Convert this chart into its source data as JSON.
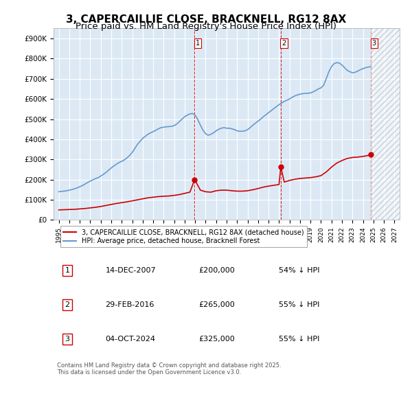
{
  "title": "3, CAPERCAILLIE CLOSE, BRACKNELL, RG12 8AX",
  "subtitle": "Price paid vs. HM Land Registry's House Price Index (HPI)",
  "title_fontsize": 11,
  "subtitle_fontsize": 9.5,
  "bg_color": "#ffffff",
  "plot_bg_color": "#dce9f5",
  "grid_color": "#ffffff",
  "red_color": "#cc0000",
  "blue_color": "#6699cc",
  "dashed_color": "#cc0000",
  "xlim_start": 1994.5,
  "xlim_end": 2027.5,
  "ylim_min": 0,
  "ylim_max": 950000,
  "ytick_values": [
    0,
    100000,
    200000,
    300000,
    400000,
    500000,
    600000,
    700000,
    800000,
    900000
  ],
  "ytick_labels": [
    "£0",
    "£100K",
    "£200K",
    "£300K",
    "£400K",
    "£500K",
    "£600K",
    "£700K",
    "£800K",
    "£900K"
  ],
  "xtick_years": [
    1995,
    1996,
    1997,
    1998,
    1999,
    2000,
    2001,
    2002,
    2003,
    2004,
    2005,
    2006,
    2007,
    2008,
    2009,
    2010,
    2011,
    2012,
    2013,
    2014,
    2015,
    2016,
    2017,
    2018,
    2019,
    2020,
    2021,
    2022,
    2023,
    2024,
    2025,
    2026,
    2027
  ],
  "sale_dates": [
    2007.95,
    2016.16,
    2024.75
  ],
  "sale_prices": [
    200000,
    265000,
    325000
  ],
  "sale_labels": [
    "1",
    "2",
    "3"
  ],
  "vline_dates": [
    2007.95,
    2016.16,
    2024.75
  ],
  "legend_entries": [
    "3, CAPERCAILLIE CLOSE, BRACKNELL, RG12 8AX (detached house)",
    "HPI: Average price, detached house, Bracknell Forest"
  ],
  "table_rows": [
    {
      "num": "1",
      "date": "14-DEC-2007",
      "price": "£200,000",
      "hpi": "54% ↓ HPI"
    },
    {
      "num": "2",
      "date": "29-FEB-2016",
      "price": "£265,000",
      "hpi": "55% ↓ HPI"
    },
    {
      "num": "3",
      "date": "04-OCT-2024",
      "price": "£325,000",
      "hpi": "55% ↓ HPI"
    }
  ],
  "footer": "Contains HM Land Registry data © Crown copyright and database right 2025.\nThis data is licensed under the Open Government Licence v3.0.",
  "hpi_years": [
    1995.0,
    1995.25,
    1995.5,
    1995.75,
    1996.0,
    1996.25,
    1996.5,
    1996.75,
    1997.0,
    1997.25,
    1997.5,
    1997.75,
    1998.0,
    1998.25,
    1998.5,
    1998.75,
    1999.0,
    1999.25,
    1999.5,
    1999.75,
    2000.0,
    2000.25,
    2000.5,
    2000.75,
    2001.0,
    2001.25,
    2001.5,
    2001.75,
    2002.0,
    2002.25,
    2002.5,
    2002.75,
    2003.0,
    2003.25,
    2003.5,
    2003.75,
    2004.0,
    2004.25,
    2004.5,
    2004.75,
    2005.0,
    2005.25,
    2005.5,
    2005.75,
    2006.0,
    2006.25,
    2006.5,
    2006.75,
    2007.0,
    2007.25,
    2007.5,
    2007.75,
    2008.0,
    2008.25,
    2008.5,
    2008.75,
    2009.0,
    2009.25,
    2009.5,
    2009.75,
    2010.0,
    2010.25,
    2010.5,
    2010.75,
    2011.0,
    2011.25,
    2011.5,
    2011.75,
    2012.0,
    2012.25,
    2012.5,
    2012.75,
    2013.0,
    2013.25,
    2013.5,
    2013.75,
    2014.0,
    2014.25,
    2014.5,
    2014.75,
    2015.0,
    2015.25,
    2015.5,
    2015.75,
    2016.0,
    2016.25,
    2016.5,
    2016.75,
    2017.0,
    2017.25,
    2017.5,
    2017.75,
    2018.0,
    2018.25,
    2018.5,
    2018.75,
    2019.0,
    2019.25,
    2019.5,
    2019.75,
    2020.0,
    2020.25,
    2020.5,
    2020.75,
    2021.0,
    2021.25,
    2021.5,
    2021.75,
    2022.0,
    2022.25,
    2022.5,
    2022.75,
    2023.0,
    2023.25,
    2023.5,
    2023.75,
    2024.0,
    2024.25,
    2024.5,
    2024.75
  ],
  "hpi_values": [
    140000,
    142000,
    143000,
    145000,
    148000,
    151000,
    155000,
    159000,
    165000,
    171000,
    178000,
    186000,
    193000,
    199000,
    205000,
    210000,
    218000,
    226000,
    236000,
    247000,
    258000,
    268000,
    277000,
    285000,
    291000,
    298000,
    308000,
    320000,
    335000,
    355000,
    375000,
    390000,
    405000,
    415000,
    425000,
    432000,
    438000,
    445000,
    452000,
    458000,
    460000,
    462000,
    463000,
    464000,
    468000,
    476000,
    488000,
    500000,
    512000,
    520000,
    526000,
    528000,
    520000,
    498000,
    470000,
    445000,
    428000,
    420000,
    425000,
    432000,
    442000,
    450000,
    455000,
    458000,
    455000,
    455000,
    452000,
    448000,
    442000,
    440000,
    440000,
    442000,
    448000,
    458000,
    470000,
    480000,
    490000,
    500000,
    512000,
    522000,
    532000,
    542000,
    552000,
    562000,
    572000,
    580000,
    588000,
    594000,
    600000,
    608000,
    615000,
    620000,
    624000,
    626000,
    628000,
    628000,
    630000,
    635000,
    642000,
    650000,
    655000,
    668000,
    700000,
    735000,
    760000,
    775000,
    780000,
    778000,
    768000,
    755000,
    742000,
    735000,
    730000,
    732000,
    738000,
    745000,
    750000,
    755000,
    758000,
    760000
  ],
  "red_years": [
    1995.0,
    1995.5,
    1996.0,
    1996.5,
    1997.0,
    1997.5,
    1998.0,
    1998.5,
    1999.0,
    1999.5,
    2000.0,
    2000.5,
    2001.0,
    2001.5,
    2002.0,
    2002.5,
    2003.0,
    2003.5,
    2004.0,
    2004.5,
    2005.0,
    2005.5,
    2006.0,
    2006.5,
    2007.0,
    2007.5,
    2007.95,
    2008.5,
    2009.0,
    2009.5,
    2010.0,
    2010.5,
    2011.0,
    2011.5,
    2012.0,
    2012.5,
    2013.0,
    2013.5,
    2014.0,
    2014.5,
    2015.0,
    2015.5,
    2016.0,
    2016.16,
    2016.5,
    2017.0,
    2017.5,
    2018.0,
    2018.5,
    2019.0,
    2019.5,
    2020.0,
    2020.5,
    2021.0,
    2021.5,
    2022.0,
    2022.5,
    2023.0,
    2023.5,
    2024.0,
    2024.5,
    2024.75
  ],
  "red_values": [
    50000,
    51000,
    52000,
    53000,
    55000,
    57000,
    60000,
    63000,
    67000,
    72000,
    77000,
    82000,
    86000,
    90000,
    95000,
    100000,
    105000,
    110000,
    113000,
    116000,
    118000,
    119000,
    122000,
    126000,
    132000,
    138000,
    200000,
    148000,
    140000,
    138000,
    145000,
    148000,
    148000,
    145000,
    143000,
    143000,
    145000,
    150000,
    156000,
    163000,
    168000,
    172000,
    176000,
    265000,
    188000,
    196000,
    202000,
    206000,
    208000,
    210000,
    214000,
    220000,
    238000,
    262000,
    282000,
    295000,
    305000,
    310000,
    312000,
    315000,
    320000,
    325000
  ]
}
